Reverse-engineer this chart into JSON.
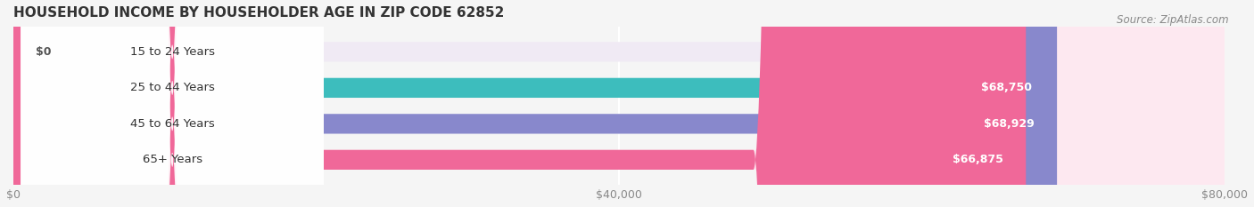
{
  "title": "HOUSEHOLD INCOME BY HOUSEHOLDER AGE IN ZIP CODE 62852",
  "source": "Source: ZipAtlas.com",
  "categories": [
    "15 to 24 Years",
    "25 to 44 Years",
    "45 to 64 Years",
    "65+ Years"
  ],
  "values": [
    0,
    68750,
    68929,
    66875
  ],
  "labels": [
    "$0",
    "$68,750",
    "$68,929",
    "$66,875"
  ],
  "bar_colors": [
    "#c9a8d4",
    "#3dbdbd",
    "#8888cc",
    "#f06899"
  ],
  "bg_colors": [
    "#f0eaf4",
    "#e0f4f4",
    "#eeeef8",
    "#fde8f0"
  ],
  "xlim": [
    0,
    80000
  ],
  "xticks": [
    0,
    40000,
    80000
  ],
  "xticklabels": [
    "$0",
    "$40,000",
    "$80,000"
  ],
  "background_color": "#f5f5f5",
  "bar_height": 0.55,
  "title_fontsize": 11,
  "label_fontsize": 9,
  "tick_fontsize": 9,
  "source_fontsize": 8.5
}
